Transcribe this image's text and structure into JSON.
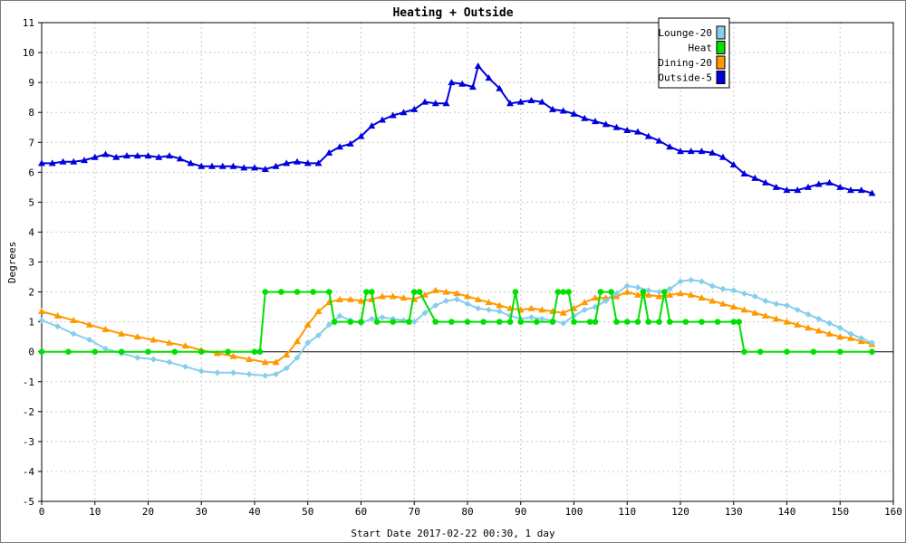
{
  "chart_data": {
    "type": "line",
    "title": "Heating + Outside",
    "xlabel": "Start Date 2017-02-22 00:30, 1 day",
    "ylabel": "Degrees",
    "xlim": [
      0,
      160
    ],
    "ylim": [
      -5,
      11
    ],
    "xticks": [
      "0",
      "10",
      "20",
      "30",
      "40",
      "50",
      "60",
      "70",
      "80",
      "90",
      "100",
      "110",
      "120",
      "130",
      "140",
      "150",
      "160"
    ],
    "yticks": [
      "-5",
      "-4",
      "-3",
      "-2",
      "-1",
      "0",
      "1",
      "2",
      "3",
      "4",
      "5",
      "6",
      "7",
      "8",
      "9",
      "10",
      "11"
    ],
    "grid": true,
    "legend_position": "top-right",
    "series": [
      {
        "name": "Lounge-20",
        "color": "#87ceeb",
        "marker": "diamond",
        "x": [
          0,
          3,
          6,
          9,
          12,
          15,
          18,
          21,
          24,
          27,
          30,
          33,
          36,
          39,
          42,
          44,
          46,
          48,
          50,
          52,
          54,
          56,
          58,
          60,
          62,
          64,
          66,
          68,
          70,
          72,
          74,
          76,
          78,
          80,
          82,
          84,
          86,
          88,
          90,
          92,
          94,
          96,
          98,
          100,
          102,
          104,
          106,
          108,
          110,
          112,
          114,
          116,
          118,
          120,
          122,
          124,
          126,
          128,
          130,
          132,
          134,
          136,
          138,
          140,
          142,
          144,
          146,
          148,
          150,
          152,
          154,
          156
        ],
        "y": [
          1.05,
          0.85,
          0.6,
          0.4,
          0.1,
          -0.05,
          -0.2,
          -0.25,
          -0.35,
          -0.5,
          -0.65,
          -0.7,
          -0.7,
          -0.75,
          -0.8,
          -0.75,
          -0.55,
          -0.2,
          0.3,
          0.55,
          0.9,
          1.2,
          1.05,
          0.95,
          1.1,
          1.15,
          1.1,
          1.05,
          1.0,
          1.3,
          1.55,
          1.7,
          1.75,
          1.6,
          1.45,
          1.4,
          1.35,
          1.2,
          1.1,
          1.15,
          1.1,
          1.05,
          0.95,
          1.2,
          1.4,
          1.5,
          1.7,
          1.95,
          2.2,
          2.15,
          2.05,
          2.0,
          2.1,
          2.35,
          2.4,
          2.35,
          2.2,
          2.1,
          2.05,
          1.95,
          1.85,
          1.7,
          1.6,
          1.55,
          1.4,
          1.25,
          1.1,
          0.95,
          0.8,
          0.6,
          0.45,
          0.3
        ]
      },
      {
        "name": "Heat",
        "color": "#00e000",
        "marker": "circle",
        "x": [
          0,
          5,
          10,
          15,
          20,
          25,
          30,
          35,
          40,
          41,
          42,
          45,
          48,
          51,
          54,
          55,
          58,
          60,
          61,
          62,
          63,
          66,
          69,
          70,
          71,
          74,
          77,
          80,
          83,
          86,
          88,
          89,
          90,
          93,
          96,
          97,
          98,
          99,
          100,
          103,
          104,
          105,
          107,
          108,
          110,
          112,
          113,
          114,
          116,
          117,
          118,
          121,
          124,
          127,
          130,
          131,
          132,
          135,
          140,
          145,
          150,
          156
        ],
        "y": [
          0,
          0,
          0,
          0,
          0,
          0,
          0,
          0,
          0,
          0,
          2,
          2,
          2,
          2,
          2,
          1,
          1,
          1,
          2,
          2,
          1,
          1,
          1,
          2,
          2,
          1,
          1,
          1,
          1,
          1,
          1,
          2,
          1,
          1,
          1,
          2,
          2,
          2,
          1,
          1,
          1,
          2,
          2,
          1,
          1,
          1,
          2,
          1,
          1,
          2,
          1,
          1,
          1,
          1,
          1,
          1,
          0,
          0,
          0,
          0,
          0,
          0
        ]
      },
      {
        "name": "Dining-20",
        "color": "#ff9900",
        "marker": "triangle",
        "x": [
          0,
          3,
          6,
          9,
          12,
          15,
          18,
          21,
          24,
          27,
          30,
          33,
          36,
          39,
          42,
          44,
          46,
          48,
          50,
          52,
          54,
          56,
          58,
          60,
          62,
          64,
          66,
          68,
          70,
          72,
          74,
          76,
          78,
          80,
          82,
          84,
          86,
          88,
          90,
          92,
          94,
          96,
          98,
          100,
          102,
          104,
          106,
          108,
          110,
          112,
          114,
          116,
          118,
          120,
          122,
          124,
          126,
          128,
          130,
          132,
          134,
          136,
          138,
          140,
          142,
          144,
          146,
          148,
          150,
          152,
          154,
          156
        ],
        "y": [
          1.35,
          1.2,
          1.05,
          0.9,
          0.75,
          0.6,
          0.5,
          0.4,
          0.3,
          0.2,
          0.05,
          -0.05,
          -0.15,
          -0.25,
          -0.35,
          -0.35,
          -0.1,
          0.35,
          0.9,
          1.35,
          1.65,
          1.75,
          1.75,
          1.7,
          1.75,
          1.85,
          1.85,
          1.8,
          1.75,
          1.9,
          2.05,
          2.0,
          1.95,
          1.85,
          1.75,
          1.65,
          1.55,
          1.45,
          1.4,
          1.45,
          1.4,
          1.35,
          1.3,
          1.45,
          1.65,
          1.8,
          1.8,
          1.85,
          2.0,
          1.9,
          1.9,
          1.85,
          1.9,
          1.95,
          1.9,
          1.8,
          1.7,
          1.6,
          1.5,
          1.4,
          1.3,
          1.2,
          1.1,
          1.0,
          0.9,
          0.8,
          0.7,
          0.6,
          0.5,
          0.45,
          0.35,
          0.25
        ]
      },
      {
        "name": "Outside-5",
        "color": "#0000dd",
        "marker": "triangle",
        "x": [
          0,
          2,
          4,
          6,
          8,
          10,
          12,
          14,
          16,
          18,
          20,
          22,
          24,
          26,
          28,
          30,
          32,
          34,
          36,
          38,
          40,
          42,
          44,
          46,
          48,
          50,
          52,
          54,
          56,
          58,
          60,
          62,
          64,
          66,
          68,
          70,
          72,
          74,
          76,
          77,
          79,
          81,
          82,
          84,
          86,
          88,
          90,
          92,
          94,
          96,
          98,
          100,
          102,
          104,
          106,
          108,
          110,
          112,
          114,
          116,
          118,
          120,
          122,
          124,
          126,
          128,
          130,
          132,
          134,
          136,
          138,
          140,
          142,
          144,
          146,
          148,
          150,
          152,
          154,
          156
        ],
        "y": [
          6.3,
          6.3,
          6.35,
          6.35,
          6.4,
          6.5,
          6.6,
          6.5,
          6.55,
          6.55,
          6.55,
          6.5,
          6.55,
          6.45,
          6.3,
          6.2,
          6.2,
          6.2,
          6.2,
          6.15,
          6.15,
          6.1,
          6.2,
          6.3,
          6.35,
          6.3,
          6.3,
          6.65,
          6.85,
          6.95,
          7.2,
          7.55,
          7.75,
          7.9,
          8.0,
          8.1,
          8.35,
          8.3,
          8.3,
          9.0,
          8.95,
          8.85,
          9.55,
          9.15,
          8.8,
          8.3,
          8.35,
          8.4,
          8.35,
          8.1,
          8.05,
          7.95,
          7.8,
          7.7,
          7.6,
          7.5,
          7.4,
          7.35,
          7.2,
          7.05,
          6.85,
          6.7,
          6.7,
          6.7,
          6.65,
          6.5,
          6.25,
          5.95,
          5.8,
          5.65,
          5.5,
          5.4,
          5.4,
          5.5,
          5.6,
          5.65,
          5.5,
          5.4,
          5.4,
          5.3
        ]
      }
    ]
  }
}
